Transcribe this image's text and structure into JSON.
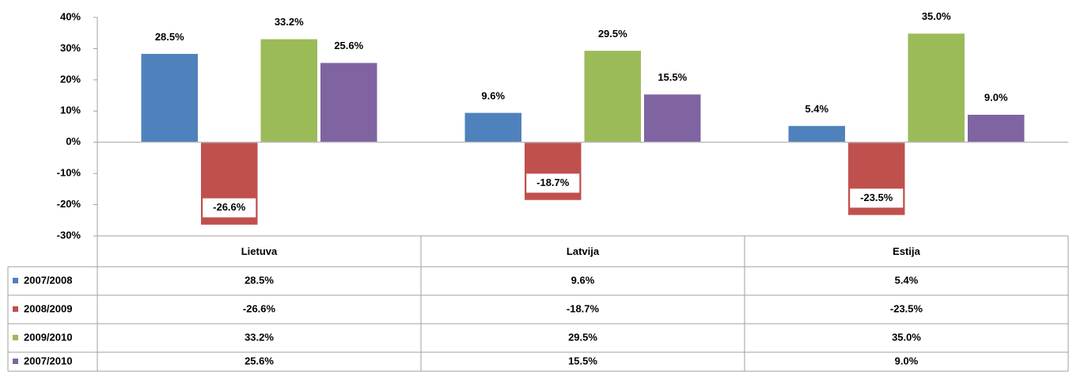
{
  "chart_data": {
    "type": "bar",
    "categories": [
      "Lietuva",
      "Latvija",
      "Estija"
    ],
    "series": [
      {
        "name": "2007/2008",
        "color": "#4f81bd",
        "values": [
          28.5,
          9.6,
          5.4
        ],
        "value_labels": [
          "28.5%",
          "9.6%",
          "5.4%"
        ]
      },
      {
        "name": "2008/2009",
        "color": "#c0504d",
        "values": [
          -26.6,
          -18.7,
          -23.5
        ],
        "value_labels": [
          "-26.6%",
          "-18.7%",
          "-23.5%"
        ]
      },
      {
        "name": "2009/2010",
        "color": "#9bbb59",
        "values": [
          33.2,
          29.5,
          35.0
        ],
        "value_labels": [
          "33.2%",
          "29.5%",
          "35.0%"
        ]
      },
      {
        "name": "2007/2010",
        "color": "#8064a2",
        "values": [
          25.6,
          15.5,
          9.0
        ],
        "value_labels": [
          "25.6%",
          "15.5%",
          "9.0%"
        ]
      }
    ],
    "ylim": [
      -30,
      40
    ],
    "yticks": [
      {
        "value": -30,
        "label": "-30%"
      },
      {
        "value": -20,
        "label": "-20%"
      },
      {
        "value": -10,
        "label": "-10%"
      },
      {
        "value": 0,
        "label": "0%"
      },
      {
        "value": 10,
        "label": "10%"
      },
      {
        "value": 20,
        "label": "20%"
      },
      {
        "value": 30,
        "label": "30%"
      },
      {
        "value": 40,
        "label": "40%"
      }
    ],
    "grid": false,
    "data_table": true
  }
}
